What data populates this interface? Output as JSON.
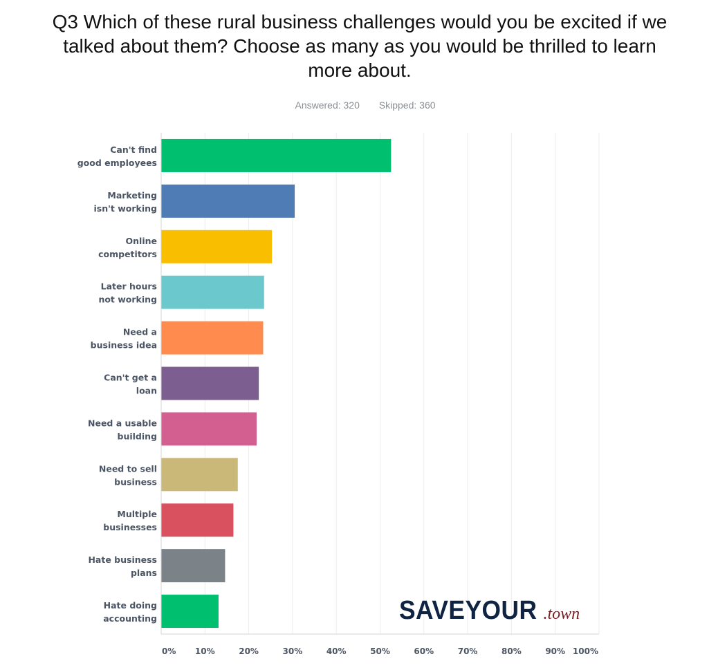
{
  "question": {
    "line1": "Q3 Which of these rural business challenges would you be excited if we",
    "line2": "talked about them? Choose as many as you would be thrilled to learn",
    "line3": "more about."
  },
  "stats": {
    "answered": "Answered: 320",
    "skipped": "Skipped: 360"
  },
  "branding": {
    "main": "SAVEYOUR",
    "suffix": ".town",
    "colors": {
      "main": "#0f2343",
      "suffix": "#7a1c24"
    }
  },
  "chart_data": {
    "type": "bar",
    "orientation": "horizontal",
    "categories": [
      [
        "Can't find",
        "good employees"
      ],
      [
        "Marketing",
        "isn't working"
      ],
      [
        "Online",
        "competitors"
      ],
      [
        "Later hours",
        "not working"
      ],
      [
        "Need a",
        "business idea"
      ],
      [
        "Can't get a",
        "loan"
      ],
      [
        "Need a usable",
        "building"
      ],
      [
        "Need to sell",
        "business"
      ],
      [
        "Multiple",
        "businesses"
      ],
      [
        "Hate business",
        "plans"
      ],
      [
        "Hate doing",
        "accounting"
      ]
    ],
    "values": [
      52.5,
      30.5,
      25.3,
      23.5,
      23.3,
      22.3,
      21.8,
      17.5,
      16.5,
      14.6,
      13.1
    ],
    "colors": [
      "#00bf6f",
      "#507cb6",
      "#f9be00",
      "#6bc8cd",
      "#ff8b4f",
      "#7d5e90",
      "#d25f90",
      "#c9b877",
      "#d9515f",
      "#7b8389",
      "#00bf6f"
    ],
    "xlim": [
      0,
      100
    ],
    "xticks": [
      "0%",
      "10%",
      "20%",
      "30%",
      "40%",
      "50%",
      "60%",
      "70%",
      "80%",
      "90%",
      "100%"
    ],
    "xlabel": "",
    "ylabel": "",
    "grid": true
  }
}
